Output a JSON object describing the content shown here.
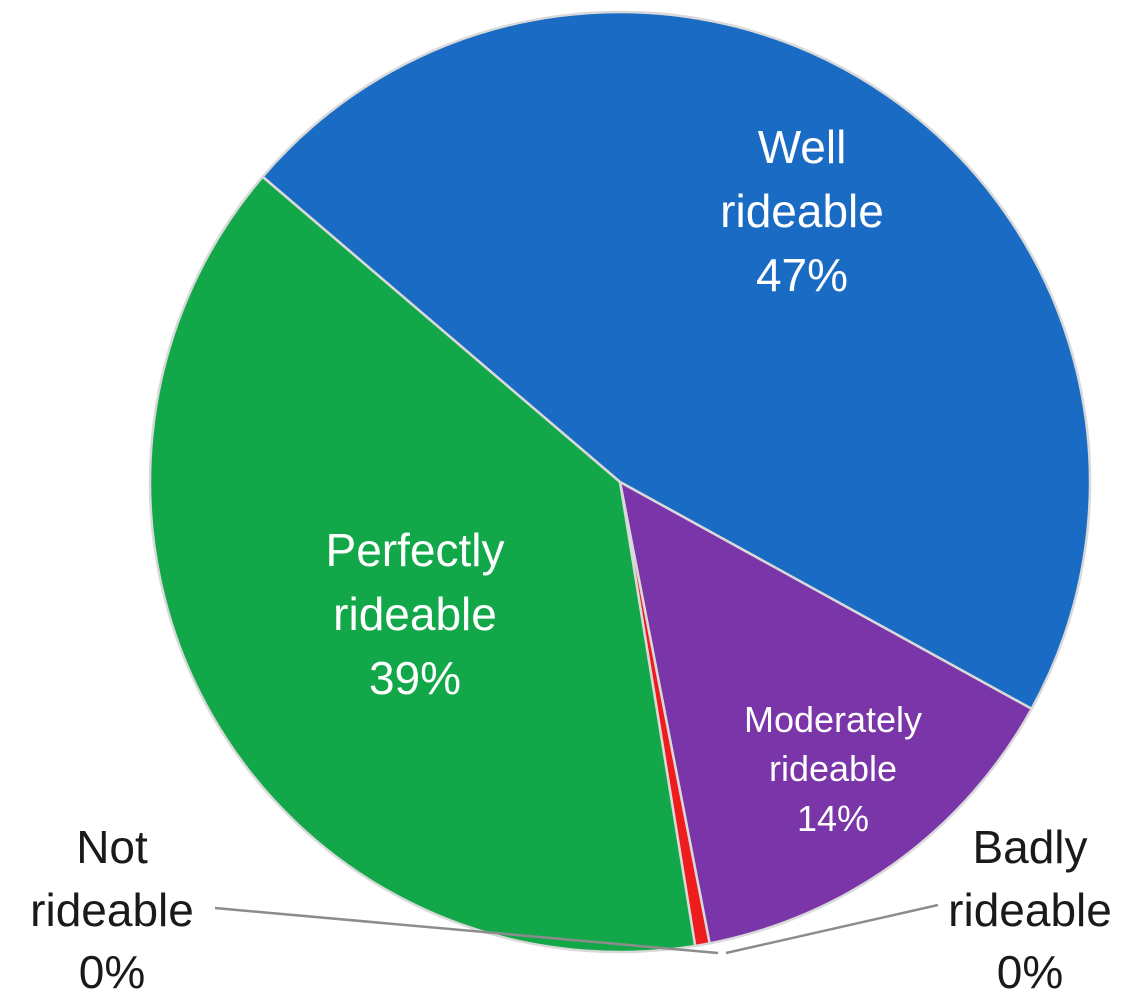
{
  "chart_data": {
    "type": "pie",
    "slices": [
      {
        "name": "Well rideable",
        "value": 47,
        "color": "#1a6bc4"
      },
      {
        "name": "Moderately rideable",
        "value": 14,
        "color": "#7a35a8"
      },
      {
        "name": "Badly rideable",
        "value": 0.5,
        "color": "#ee1c1c"
      },
      {
        "name": "Not rideable",
        "value": 0,
        "color": "#cfcfcf"
      },
      {
        "name": "Perfectly rideable",
        "value": 39,
        "color": "#12a84a"
      }
    ],
    "labels": {
      "well": {
        "line1": "Well",
        "line2": "rideable",
        "pct": "47%"
      },
      "perfectly": {
        "line1": "Perfectly",
        "line2": "rideable",
        "pct": "39%"
      },
      "moderately": {
        "line1": "Moderately",
        "line2": "rideable",
        "pct": "14%"
      },
      "badly": {
        "line1": "Badly",
        "line2": "rideable",
        "pct": "0%"
      },
      "not": {
        "line1": "Not",
        "line2": "rideable",
        "pct": "0%"
      }
    },
    "leader_color": "#8c8c8c"
  }
}
